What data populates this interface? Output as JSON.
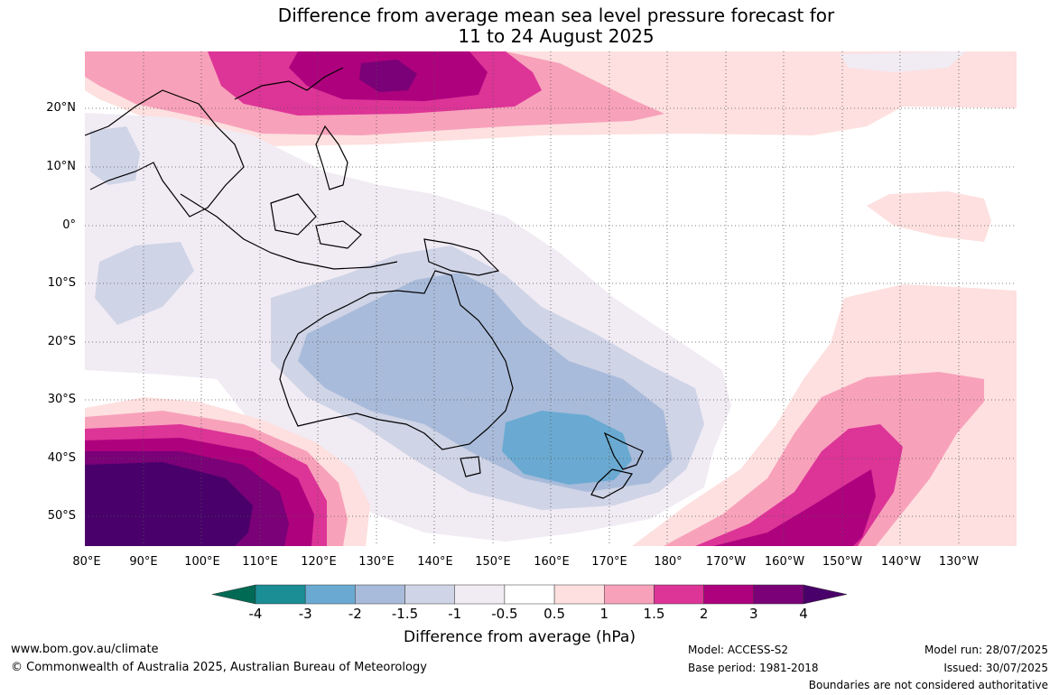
{
  "title": {
    "line1": "Difference from average mean sea level pressure forecast for",
    "line2": "11 to 24 August 2025"
  },
  "map": {
    "lat_labels": [
      "20°N",
      "10°N",
      "0°",
      "10°S",
      "20°S",
      "30°S",
      "40°S",
      "50°S"
    ],
    "lon_labels": [
      "80°E",
      "90°E",
      "100°E",
      "110°E",
      "120°E",
      "130°E",
      "140°E",
      "150°E",
      "160°E",
      "170°E",
      "180°",
      "170°W",
      "160°W",
      "150°W",
      "140°W",
      "130°W"
    ],
    "grid": "dotted",
    "regions": "Indian Ocean, Maritime Continent, Australia, New Zealand, South-west Pacific"
  },
  "legend": {
    "label": "Difference from average (hPa)",
    "ticks": [
      "-4",
      "-3",
      "-2",
      "-1.5",
      "-1",
      "-0.5",
      "0.5",
      "1",
      "1.5",
      "2",
      "3",
      "4"
    ],
    "colors": [
      "#006a55",
      "#1a8d95",
      "#6aaad2",
      "#a9bbda",
      "#cfd4e6",
      "#f1ebf4",
      "#ffffff",
      "#fde0df",
      "#f8a1bb",
      "#dd3497",
      "#ae017e",
      "#7a0177",
      "#49006a"
    ]
  },
  "footer": {
    "url": "www.bom.gov.au/climate",
    "copyright": "© Commonwealth of Australia 2025, Australian Bureau of Meteorology",
    "model": "Model: ACCESS-S2",
    "base_period": "Base period: 1981-2018",
    "model_run": "Model run: 28/07/2025",
    "issued": "Issued: 30/07/2025",
    "boundaries": "Boundaries are not considered authoritative"
  }
}
